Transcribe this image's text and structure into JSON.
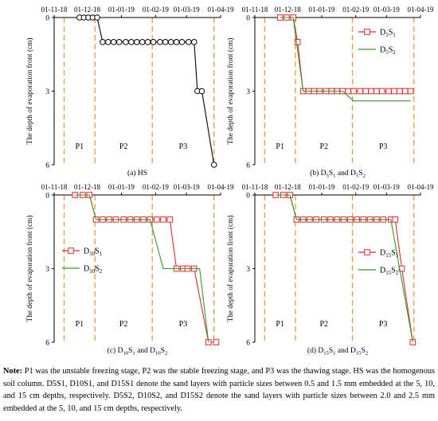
{
  "chart_data": [
    {
      "type": "line",
      "caption": "(a) HS",
      "ylabel": "The depth of evaporation front (cm)",
      "x_ticks": [
        "01-11-18",
        "01-12-18",
        "01-01-19",
        "01-02-19",
        "01-03-19",
        "01-04-19"
      ],
      "x_range": [
        "2018-11-01",
        "2019-04-01"
      ],
      "y_ticks": [
        "0",
        "3",
        "6"
      ],
      "ylim": [
        0,
        6
      ],
      "y_inverted": true,
      "stage_boundaries": [
        "2018-11-10",
        "2018-12-08",
        "2019-01-29",
        "2019-03-26"
      ],
      "stages": [
        {
          "label": "P1",
          "from": "2018-11-10",
          "to": "2018-12-08"
        },
        {
          "label": "P2",
          "from": "2018-12-08",
          "to": "2019-01-29"
        },
        {
          "label": "P3",
          "from": "2019-01-29",
          "to": "2019-03-26"
        }
      ],
      "series": [
        {
          "name": "",
          "color": "#000000",
          "marker": "circle",
          "x": [
            "2018-11-24",
            "2018-11-28",
            "2018-12-02",
            "2018-12-06",
            "2018-12-10",
            "2018-12-15",
            "2018-12-20",
            "2018-12-25",
            "2018-12-30",
            "2019-01-05",
            "2019-01-10",
            "2019-01-15",
            "2019-01-20",
            "2019-01-25",
            "2019-01-30",
            "2019-02-05",
            "2019-02-10",
            "2019-02-15",
            "2019-02-20",
            "2019-02-25",
            "2019-03-03",
            "2019-03-08",
            "2019-03-11",
            "2019-03-15",
            "2019-03-26"
          ],
          "y": [
            0,
            0,
            0,
            0,
            0,
            1,
            1,
            1,
            1,
            1,
            1,
            1,
            1,
            1,
            1,
            1,
            1,
            1,
            1,
            1,
            1,
            1,
            3,
            3,
            6
          ]
        }
      ]
    },
    {
      "type": "line",
      "caption": "(b) D5S1 and D5S2",
      "caption_parts": [
        "(b) D",
        "5",
        "S",
        "1",
        " and D",
        "5",
        "S",
        "2"
      ],
      "ylabel": "The depth of evaporation front (cm)",
      "x_ticks": [
        "01-11-18",
        "01-12-18",
        "01-01-19",
        "01-02-19",
        "01-03-19",
        "01-04-19"
      ],
      "x_range": [
        "2018-11-01",
        "2019-04-01"
      ],
      "y_ticks": [
        "0",
        "3",
        "6"
      ],
      "ylim": [
        0,
        6
      ],
      "y_inverted": true,
      "stage_boundaries": [
        "2018-11-10",
        "2018-12-08",
        "2019-01-29",
        "2019-03-26"
      ],
      "stages": [
        {
          "label": "P1",
          "from": "2018-11-10",
          "to": "2018-12-08"
        },
        {
          "label": "P2",
          "from": "2018-12-08",
          "to": "2019-01-29"
        },
        {
          "label": "P3",
          "from": "2019-01-29",
          "to": "2019-03-26"
        }
      ],
      "legend_position": "top-right",
      "series": [
        {
          "name": "D5S1",
          "name_parts": [
            "D",
            "5",
            "S",
            "1"
          ],
          "color": "#e8272a",
          "marker": "square",
          "x": [
            "2018-11-24",
            "2018-11-30",
            "2018-12-06",
            "2018-12-10",
            "2018-12-15",
            "2018-12-20",
            "2018-12-25",
            "2018-12-30",
            "2019-01-05",
            "2019-01-10",
            "2019-01-15",
            "2019-01-20",
            "2019-01-25",
            "2019-01-30",
            "2019-02-05",
            "2019-02-10",
            "2019-02-15",
            "2019-02-20",
            "2019-02-25",
            "2019-03-03",
            "2019-03-08",
            "2019-03-13",
            "2019-03-18",
            "2019-03-23"
          ],
          "y": [
            0,
            0,
            0,
            1,
            3,
            3,
            3,
            3,
            3,
            3,
            3,
            3,
            3,
            3,
            3,
            3,
            3,
            3,
            3,
            3,
            3,
            3,
            3,
            3
          ]
        },
        {
          "name": "D5S2",
          "name_parts": [
            "D",
            "5",
            "S",
            "2"
          ],
          "color": "#2e9b2e",
          "marker": "none",
          "x": [
            "2018-11-24",
            "2018-12-06",
            "2018-12-15",
            "2019-01-20",
            "2019-01-30",
            "2019-03-23"
          ],
          "y": [
            0,
            0,
            3,
            3,
            3.4,
            3.4
          ]
        }
      ]
    },
    {
      "type": "line",
      "caption": "(c) D10S1 and D10S2",
      "caption_parts": [
        "(c) D",
        "10",
        "S",
        "1",
        " and D",
        "10",
        "S",
        "2"
      ],
      "ylabel": "The depth of evaporation front (cm)",
      "x_ticks": [
        "01-11-18",
        "01-12-18",
        "01-01-19",
        "01-02-19",
        "01-03-19",
        "01-04-19"
      ],
      "x_range": [
        "2018-11-01",
        "2019-04-01"
      ],
      "y_ticks": [
        "0",
        "3",
        "6"
      ],
      "ylim": [
        0,
        6
      ],
      "y_inverted": true,
      "stage_boundaries": [
        "2018-11-10",
        "2018-12-08",
        "2019-01-29",
        "2019-03-26"
      ],
      "stages": [
        {
          "label": "P1",
          "from": "2018-11-10",
          "to": "2018-12-08"
        },
        {
          "label": "P2",
          "from": "2018-12-08",
          "to": "2019-01-29"
        },
        {
          "label": "P3",
          "from": "2019-01-29",
          "to": "2019-03-26"
        }
      ],
      "legend_position": "center-left",
      "series": [
        {
          "name": "D10S1",
          "name_parts": [
            "D",
            "10",
            "S",
            "1"
          ],
          "color": "#e8272a",
          "marker": "square",
          "x": [
            "2018-11-20",
            "2018-11-27",
            "2018-12-03",
            "2018-12-09",
            "2018-12-15",
            "2018-12-21",
            "2018-12-27",
            "2019-01-03",
            "2019-01-09",
            "2019-01-15",
            "2019-01-21",
            "2019-01-27",
            "2019-02-02",
            "2019-02-08",
            "2019-02-14",
            "2019-02-20",
            "2019-02-26",
            "2019-03-02",
            "2019-03-08",
            "2019-03-21",
            "2019-03-28"
          ],
          "y": [
            0,
            0,
            0,
            1,
            1,
            1,
            1,
            1,
            1,
            1,
            1,
            1,
            1,
            1,
            1,
            3,
            3,
            3,
            3,
            6,
            6
          ]
        },
        {
          "name": "D10S2",
          "name_parts": [
            "D",
            "10",
            "S",
            "2"
          ],
          "color": "#2e9b2e",
          "marker": "none",
          "x": [
            "2018-11-20",
            "2018-12-03",
            "2018-12-09",
            "2019-01-27",
            "2019-02-08",
            "2019-03-13",
            "2019-03-21"
          ],
          "y": [
            0,
            0,
            1,
            1,
            3,
            3,
            6
          ]
        }
      ]
    },
    {
      "type": "line",
      "caption": "(d) D15S1 and D15S2",
      "caption_parts": [
        "(d) D",
        "15",
        "S",
        "1",
        " and D",
        "15",
        "S",
        "2"
      ],
      "ylabel": "The depth of evaporation front (cm)",
      "x_ticks": [
        "01-11-18",
        "01-12-18",
        "01-01-19",
        "01-02-19",
        "01-03-19",
        "01-04-19"
      ],
      "x_range": [
        "2018-11-01",
        "2019-04-01"
      ],
      "y_ticks": [
        "0",
        "3",
        "6"
      ],
      "ylim": [
        0,
        6
      ],
      "y_inverted": true,
      "stage_boundaries": [
        "2018-11-10",
        "2018-12-08",
        "2019-01-29",
        "2019-03-26"
      ],
      "stages": [
        {
          "label": "P1",
          "from": "2018-11-10",
          "to": "2018-12-08"
        },
        {
          "label": "P2",
          "from": "2018-12-08",
          "to": "2019-01-29"
        },
        {
          "label": "P3",
          "from": "2019-01-29",
          "to": "2019-03-26"
        }
      ],
      "legend_position": "center-right",
      "series": [
        {
          "name": "D15S1",
          "name_parts": [
            "D",
            "15",
            "S",
            "1"
          ],
          "color": "#e8272a",
          "marker": "square",
          "x": [
            "2018-11-20",
            "2018-11-27",
            "2018-12-03",
            "2018-12-09",
            "2018-12-15",
            "2018-12-21",
            "2018-12-27",
            "2019-01-03",
            "2019-01-09",
            "2019-01-15",
            "2019-01-21",
            "2019-01-27",
            "2019-02-02",
            "2019-02-08",
            "2019-02-14",
            "2019-02-20",
            "2019-02-26",
            "2019-03-05",
            "2019-03-09",
            "2019-03-15",
            "2019-03-25"
          ],
          "y": [
            0,
            0,
            0,
            1,
            1,
            1,
            1,
            1,
            1,
            1,
            1,
            1,
            1,
            1,
            1,
            1,
            1,
            1,
            1,
            3,
            6
          ]
        },
        {
          "name": "D15S2",
          "name_parts": [
            "D",
            "15",
            "S",
            "2"
          ],
          "color": "#2e9b2e",
          "marker": "none",
          "x": [
            "2018-11-20",
            "2018-12-03",
            "2018-12-09",
            "2019-03-05",
            "2019-03-13",
            "2019-03-25"
          ],
          "y": [
            0,
            0,
            1,
            1,
            3,
            6
          ]
        }
      ]
    }
  ],
  "note": {
    "lead": "Note:",
    "text": " P1 was the unstable freezing stage, P2 was the stable freezing stage, and P3 was the thawing stage. HS was the homogenous soil column. D5S1, D10S1, and D15S1 denote the sand layers with particle sizes between 0.5 and 1.5 mm embedded at the 5, 10, and 15 cm depths, respectively. D5S2, D10S2, and D15S2 denote the sand layers with particle sizes between 2.0 and 2.5 mm embedded at the 5, 10, and 15 cm depths, respectively."
  }
}
